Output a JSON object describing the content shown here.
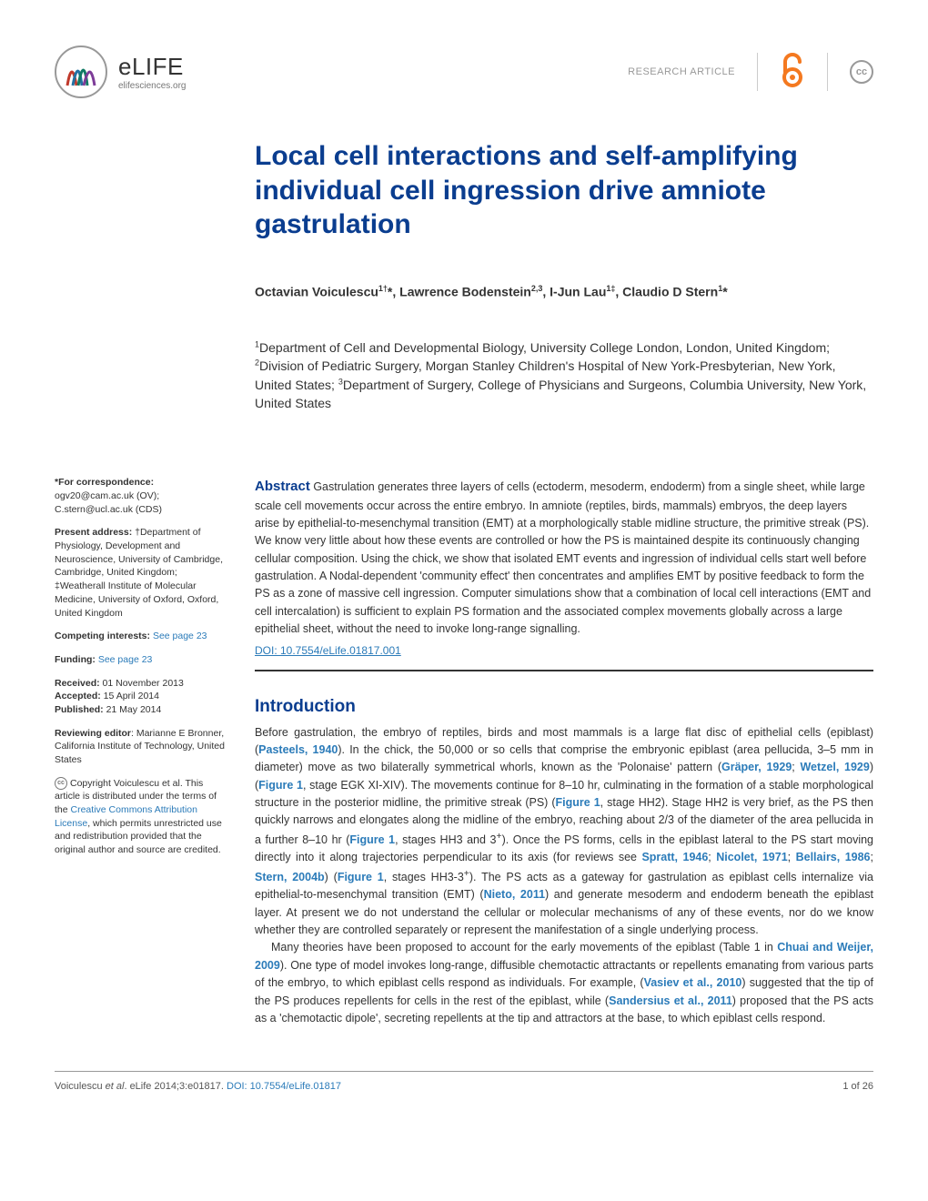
{
  "header": {
    "journal": "eLIFE",
    "journal_url": "elifesciences.org",
    "article_type": "RESEARCH ARTICLE",
    "cc_label": "cc"
  },
  "title": "Local cell interactions and self-amplifying individual cell ingression drive amniote gastrulation",
  "authors_html": "Octavian Voiculescu<sup>1†</sup>*, Lawrence Bodenstein<sup>2,3</sup>, I-Jun Lau<sup>1‡</sup>, Claudio D Stern<sup>1</sup>*",
  "affiliations_html": "<sup>1</sup>Department of Cell and Developmental Biology, University College London, London, United Kingdom; <sup>2</sup>Division of Pediatric Surgery, Morgan Stanley Children's Hospital of New York-Presbyterian, New York, United States; <sup>3</sup>Department of Surgery, College of Physicians and Surgeons, Columbia University, New York, United States",
  "sidebar": {
    "correspondence_label": "*For correspondence:",
    "correspondence_text": " ogv20@cam.ac.uk (OV); C.stern@ucl.ac.uk (CDS)",
    "present_label": "Present address:",
    "present_text": " †Department of Physiology, Development and Neuroscience, University of Cambridge, Cambridge, United Kingdom; ‡Weatherall Institute of Molecular Medicine, University of Oxford, Oxford, United Kingdom",
    "competing_label": "Competing interests:",
    "competing_link": "See page 23",
    "funding_label": "Funding:",
    "funding_link": "See page 23",
    "received_label": "Received:",
    "received": " 01 November 2013",
    "accepted_label": "Accepted:",
    "accepted": " 15 April 2014",
    "published_label": "Published:",
    "published": " 21 May 2014",
    "rev_editor_label": "Reviewing editor",
    "rev_editor": ": Marianne E Bronner, California Institute of Technology, United States",
    "copyright_html": "Copyright Voiculescu et al. This article is distributed under the terms of the <a href='#'>Creative Commons Attribution License</a>, which permits unrestricted use and redistribution provided that the original author and source are credited."
  },
  "abstract": {
    "label": "Abstract",
    "text": " Gastrulation generates three layers of cells (ectoderm, mesoderm, endoderm) from a single sheet, while large scale cell movements occur across the entire embryo. In amniote (reptiles, birds, mammals) embryos, the deep layers arise by epithelial-to-mesenchymal transition (EMT) at a morphologically stable midline structure, the primitive streak (PS). We know very little about how these events are controlled or how the PS is maintained despite its continuously changing cellular composition. Using the chick, we show that isolated EMT events and ingression of individual cells start well before gastrulation. A Nodal-dependent 'community effect' then concentrates and amplifies EMT by positive feedback to form the PS as a zone of massive cell ingression. Computer simulations show that a combination of local cell interactions (EMT and cell intercalation) is sufficient to explain PS formation and the associated complex movements globally across a large epithelial sheet, without the need to invoke long-range signalling.",
    "doi": "DOI: 10.7554/eLife.01817.001"
  },
  "intro": {
    "heading": "Introduction",
    "p1_html": "Before gastrulation, the embryo of reptiles, birds and most mammals is a large flat disc of epithelial cells (epiblast) (<span class='ref'>Pasteels, 1940</span>). In the chick, the 50,000 or so cells that comprise the embryonic epiblast (area pellucida, 3–5 mm in diameter) move as two bilaterally symmetrical whorls, known as the 'Polonaise' pattern (<span class='ref'>Gräper, 1929</span>; <span class='ref'>Wetzel, 1929</span>) (<span class='fig'>Figure 1</span>, stage EGK XI-XIV). The movements continue for 8–10 hr, culminating in the formation of a stable morphological structure in the posterior midline, the primitive streak (PS) (<span class='fig'>Figure 1</span>, stage HH2). Stage HH2 is very brief, as the PS then quickly narrows and elongates along the midline of the embryo, reaching about 2/3 of the diameter of the area pellucida in a further 8–10 hr (<span class='fig'>Figure 1</span>, stages HH3 and 3<sup>+</sup>). Once the PS forms, cells in the epiblast lateral to the PS start moving directly into it along trajectories perpendicular to its axis (for reviews see <span class='ref'>Spratt, 1946</span>; <span class='ref'>Nicolet, 1971</span>; <span class='ref'>Bellairs, 1986</span>; <span class='ref'>Stern, 2004b</span>) (<span class='fig'>Figure 1</span>, stages HH3-3<sup>+</sup>). The PS acts as a gateway for gastrulation as epiblast cells internalize via epithelial-to-mesenchymal transition (EMT) (<span class='ref'>Nieto, 2011</span>) and generate mesoderm and endoderm beneath the epiblast layer. At present we do not understand the cellular or molecular mechanisms of any of these events, nor do we know whether they are controlled separately or represent the manifestation of a single underlying process.",
    "p2_html": "Many theories have been proposed to account for the early movements of the epiblast (Table 1 in <span class='ref'>Chuai and Weijer, 2009</span>). One type of model invokes long-range, diffusible chemotactic attractants or repellents emanating from various parts of the embryo, to which epiblast cells respond as individuals. For example, (<span class='ref'>Vasiev et al., 2010</span>) suggested that the tip of the PS produces repellents for cells in the rest of the epiblast, while (<span class='ref'>Sandersius et al., 2011</span>) proposed that the PS acts as a 'chemotactic dipole', secreting repellents at the tip and attractors at the base, to which epiblast cells respond."
  },
  "footer": {
    "citation_html": "Voiculescu <em>et al</em>. eLife 2014;3:e01817. ",
    "doi": "DOI: 10.7554/eLife.01817",
    "page": "1 of 26"
  },
  "colors": {
    "brand_blue": "#0a3d8f",
    "link_blue": "#2b7bb9",
    "orange": "#f47920"
  }
}
